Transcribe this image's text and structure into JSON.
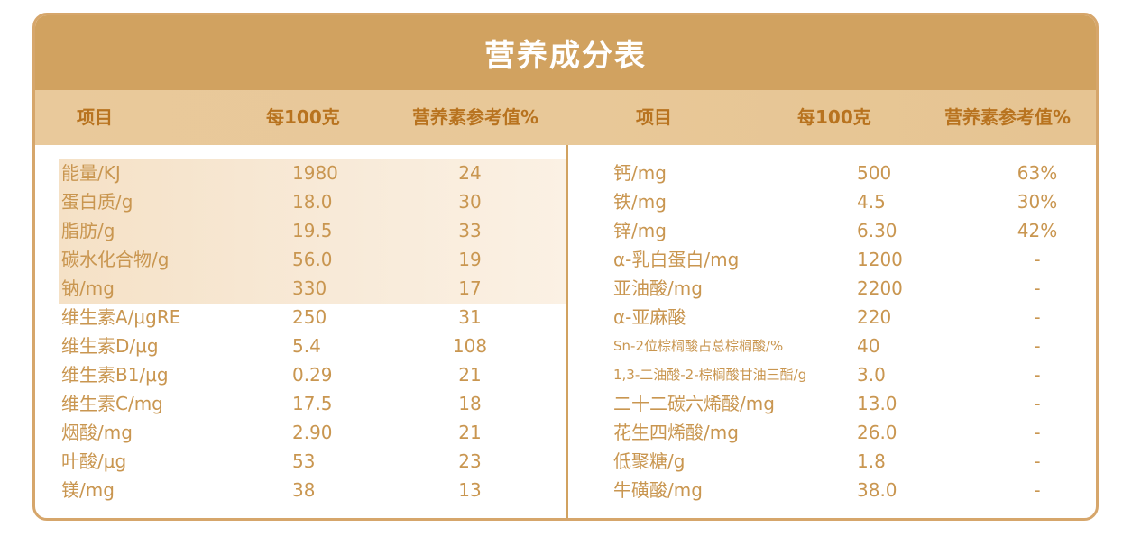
{
  "title": "营养成分表",
  "headers": {
    "left": [
      "项目",
      "每100克",
      "营养素参考值%"
    ],
    "right": [
      "项目",
      "每100克",
      "营养素参考值%"
    ]
  },
  "left_rows": [
    {
      "item": "能量/KJ",
      "per100g": "1980",
      "nrv": "24"
    },
    {
      "item": "蛋白质/g",
      "per100g": "18.0",
      "nrv": "30"
    },
    {
      "item": "脂肪/g",
      "per100g": "19.5",
      "nrv": "33"
    },
    {
      "item": "碳水化合物/g",
      "per100g": "56.0",
      "nrv": "19"
    },
    {
      "item": "钠/mg",
      "per100g": "330",
      "nrv": "17"
    },
    {
      "item": "维生素A/μgRE",
      "per100g": "250",
      "nrv": "31"
    },
    {
      "item": "维生素D/μg",
      "per100g": "5.4",
      "nrv": "108"
    },
    {
      "item": "维生素B1/μg",
      "per100g": "0.29",
      "nrv": "21"
    },
    {
      "item": "维生素C/mg",
      "per100g": "17.5",
      "nrv": "18"
    },
    {
      "item": "烟酸/mg",
      "per100g": "2.90",
      "nrv": "21"
    },
    {
      "item": "叶酸/μg",
      "per100g": "53",
      "nrv": "23"
    },
    {
      "item": "镁/mg",
      "per100g": "38",
      "nrv": "13"
    }
  ],
  "right_rows": [
    {
      "item": "钙/mg",
      "per100g": "500",
      "nrv": "63%"
    },
    {
      "item": "铁/mg",
      "per100g": "4.5",
      "nrv": "30%"
    },
    {
      "item": "锌/mg",
      "per100g": "6.30",
      "nrv": "42%"
    },
    {
      "item": "α-乳白蛋白/mg",
      "per100g": "1200",
      "nrv": "-"
    },
    {
      "item": "亚油酸/mg",
      "per100g": "2200",
      "nrv": "-"
    },
    {
      "item": "α-亚麻酸",
      "per100g": "220",
      "nrv": "-"
    },
    {
      "item": "Sn-2位棕榈酸占总棕榈酸/%",
      "per100g": "40",
      "nrv": "-"
    },
    {
      "item": "1,3-二油酸-2-棕榈酸甘油三酯/g",
      "per100g": "3.0",
      "nrv": "-"
    },
    {
      "item": "二十二碳六烯酸/mg",
      "per100g": "13.0",
      "nrv": "-"
    },
    {
      "item": "花生四烯酸/mg",
      "per100g": "26.0",
      "nrv": "-"
    },
    {
      "item": "低聚糖/g",
      "per100g": "1.8",
      "nrv": "-"
    },
    {
      "item": "牛磺酸/mg",
      "per100g": "38.0",
      "nrv": "-"
    }
  ],
  "colors": {
    "title_bg": "#d1a260",
    "header_bg": "#e9c99b",
    "header_text": "#b8731f",
    "body_text": "#c99650",
    "highlight": "#f5e1c6",
    "border": "#d6a66b"
  }
}
